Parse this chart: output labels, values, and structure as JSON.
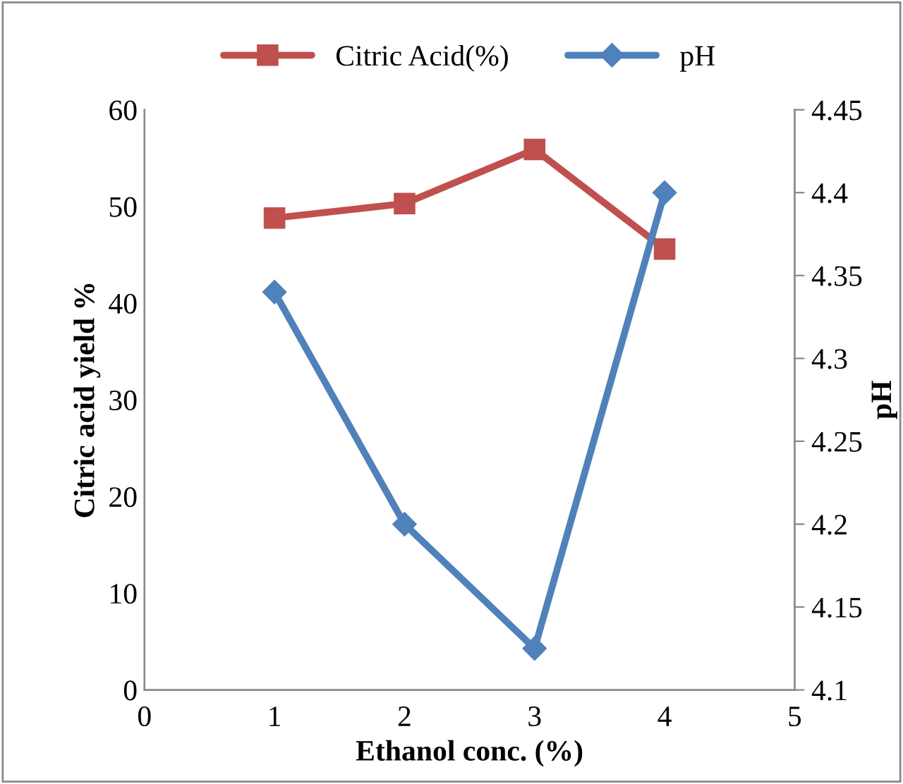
{
  "chart_data": {
    "type": "line",
    "xlabel": "Ethanol conc. (%)",
    "ylabel": "Citric acid yield %",
    "y2label": "pH",
    "x": [
      1,
      2,
      3,
      4
    ],
    "series": [
      {
        "name": "Citric Acid(%)",
        "color": "#c0504d",
        "values": [
          48.8,
          50.3,
          55.9,
          45.6
        ],
        "marker": "square"
      },
      {
        "name": "pH",
        "color": "#4f81bd",
        "values": [
          4.34,
          4.2,
          4.125,
          4.4
        ],
        "axis": "y2",
        "marker": "diamond"
      }
    ],
    "xlim": [
      0,
      5
    ],
    "xticks": [
      0,
      1,
      2,
      3,
      4,
      5
    ],
    "ylim": [
      0,
      60
    ],
    "yticks": [
      0,
      10,
      20,
      30,
      40,
      50,
      60
    ],
    "y2lim": [
      4.1,
      4.45
    ],
    "y2ticks": [
      4.1,
      4.15,
      4.2,
      4.25,
      4.3,
      4.35,
      4.4,
      4.45
    ],
    "grid": false,
    "legend": "top",
    "line_style": "solid"
  }
}
